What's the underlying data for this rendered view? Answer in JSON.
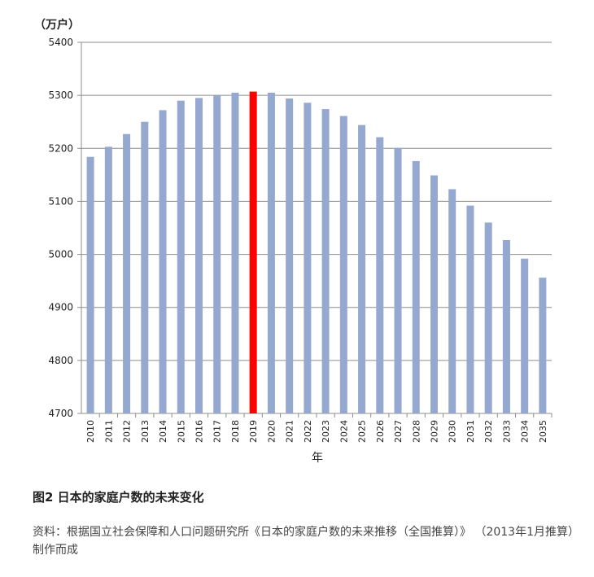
{
  "chart_data": {
    "type": "bar",
    "unit_label": "（万户）",
    "xlabel": "年",
    "ylabel": "",
    "ylim": [
      4700,
      5400
    ],
    "yticks": [
      4700,
      4800,
      4900,
      5000,
      5100,
      5200,
      5300,
      5400
    ],
    "grid": true,
    "categories": [
      "2010",
      "2011",
      "2012",
      "2013",
      "2014",
      "2015",
      "2016",
      "2017",
      "2018",
      "2019",
      "2020",
      "2021",
      "2022",
      "2023",
      "2024",
      "2025",
      "2026",
      "2027",
      "2028",
      "2029",
      "2030",
      "2031",
      "2032",
      "2033",
      "2034",
      "2035"
    ],
    "values": [
      5184,
      5203,
      5227,
      5250,
      5272,
      5290,
      5295,
      5300,
      5305,
      5307,
      5305,
      5294,
      5286,
      5274,
      5261,
      5244,
      5221,
      5201,
      5176,
      5149,
      5123,
      5092,
      5060,
      5027,
      4992,
      4956
    ],
    "highlight_category": "2019",
    "bar_color": "#95a8cf",
    "highlight_color": "#ff0000",
    "grid_color": "#8c8c8c"
  },
  "caption": {
    "title": "图2 日本的家庭户数的未来变化",
    "source_line1": "资料：根据国立社会保障和人口问题研究所《日本的家庭户数的未来推移（全国推算）》",
    "source_line2": "（2013年1月推算）制作而成"
  }
}
